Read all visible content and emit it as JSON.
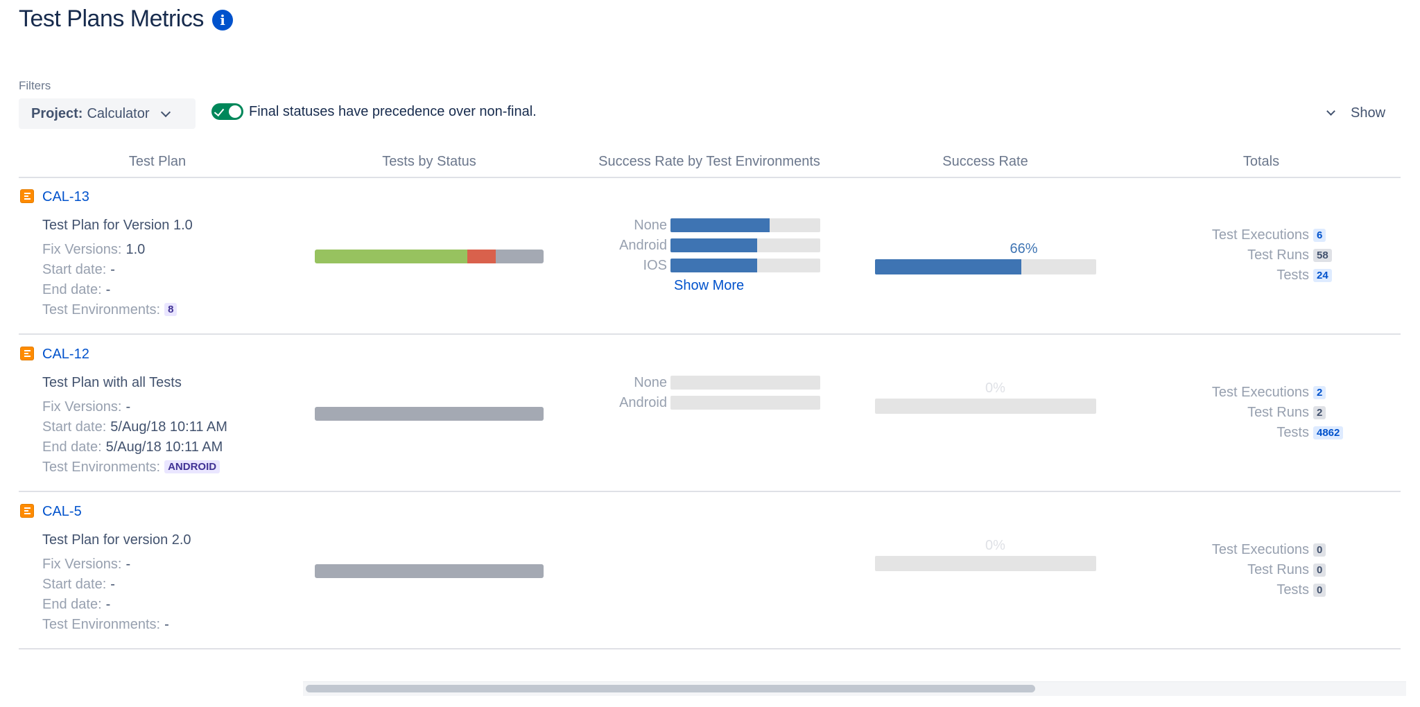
{
  "page": {
    "title": "Test Plans Metrics"
  },
  "filters": {
    "label": "Filters",
    "project_key": "Project:",
    "project_value": "Calculator",
    "toggle_label": "Final statuses have precedence over non-final.",
    "show_label": "Show"
  },
  "columns": [
    "Test Plan",
    "Tests by Status",
    "Success Rate by Test Environments",
    "Success Rate",
    "Totals"
  ],
  "labels": {
    "fix_versions": "Fix Versions:",
    "start_date": "Start date:",
    "end_date": "End date:",
    "test_envs": "Test Environments:",
    "test_executions": "Test Executions",
    "test_runs": "Test Runs",
    "tests": "Tests",
    "show_more": "Show More"
  },
  "colors": {
    "passed": "#97c25f",
    "failed": "#d9614c",
    "todo": "#a4a9b3",
    "bar_fill": "#3e74b3",
    "link": "#0052cc",
    "toggle_on": "#00875a"
  },
  "plans": [
    {
      "key": "CAL-13",
      "name": "Test Plan for Version 1.0",
      "fix_versions": "1.0",
      "start_date": "-",
      "end_date": "-",
      "test_environments": "8",
      "status_segments": [
        {
          "status": "passed",
          "fraction": 0.667
        },
        {
          "status": "failed",
          "fraction": 0.125
        },
        {
          "status": "todo",
          "fraction": 0.208
        }
      ],
      "env_rates": [
        {
          "name": "None",
          "rate": 0.66
        },
        {
          "name": "Android",
          "rate": 0.58
        },
        {
          "name": "IOS",
          "rate": 0.58
        }
      ],
      "show_more": true,
      "success_rate": "66%",
      "success_value": 0.66,
      "test_executions": "6",
      "test_runs": "58",
      "tests": "24"
    },
    {
      "key": "CAL-12",
      "name": "Test Plan with all Tests",
      "fix_versions": "-",
      "start_date": "5/Aug/18 10:11 AM",
      "end_date": "5/Aug/18 10:11 AM",
      "test_environments": "ANDROID",
      "status_segments": [
        {
          "status": "todo",
          "fraction": 1
        }
      ],
      "env_rates": [
        {
          "name": "None",
          "rate": 0
        },
        {
          "name": "Android",
          "rate": 0
        }
      ],
      "show_more": false,
      "success_rate": "0%",
      "success_value": 0,
      "test_executions": "2",
      "test_runs": "2",
      "tests": "4862"
    },
    {
      "key": "CAL-5",
      "name": "Test Plan for version 2.0",
      "fix_versions": "-",
      "start_date": "-",
      "end_date": "-",
      "test_environments": "-",
      "status_segments": [
        {
          "status": "todo",
          "fraction": 1
        }
      ],
      "env_rates": [],
      "show_more": false,
      "success_rate": "0%",
      "success_value": 0,
      "test_executions": "0",
      "test_runs": "0",
      "tests": "0"
    }
  ]
}
